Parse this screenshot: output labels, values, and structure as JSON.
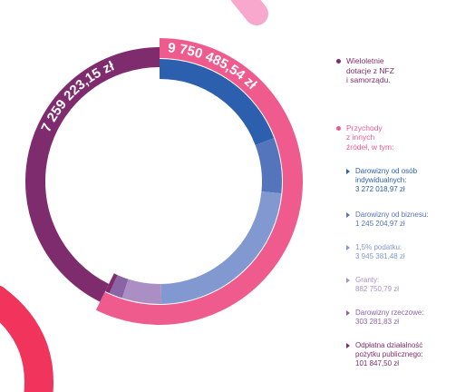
{
  "chart_data": {
    "type": "donut",
    "currency": "zł",
    "series": [
      {
        "name": "Wieloletnie\ndotacje z NFZ\ni samorządu.",
        "value": 7259223.15,
        "display_value": "7 259 223,15 zł",
        "color": "#7f2c6e"
      },
      {
        "name": "Przychody\nz innych\nźródeł, w tym:",
        "value": 9750485.54,
        "display_value": "9 750 485,54 zł",
        "color": "#ee5b8c",
        "breakdown": [
          {
            "label": "Darowizny od osób\nindywidualnych:",
            "value": 3272018.97,
            "display_value": "3 272 018,97 zł",
            "color": "#2c5fad"
          },
          {
            "label": "Darowizny od biznesu:",
            "value": 1245204.97,
            "display_value": "1 245 204,97 zł",
            "color": "#5474bb"
          },
          {
            "label": "1,5% podatku:",
            "value": 3945381.48,
            "display_value": "3 945 381,48 zł",
            "color": "#8199d0"
          },
          {
            "label": "Granty:",
            "value": 882750.79,
            "display_value": "882 750,79 zł",
            "color": "#ab8fc4"
          },
          {
            "label": "Darowizny rzeczowe:",
            "value": 303281.83,
            "display_value": "303 281,83 zł",
            "color": "#8b64a6"
          },
          {
            "label": "Odpłatna działalność\npożytku publicznego:",
            "value": 101847.5,
            "display_value": "101 847,50 zł",
            "color": "#7f2c6e"
          }
        ]
      }
    ]
  }
}
